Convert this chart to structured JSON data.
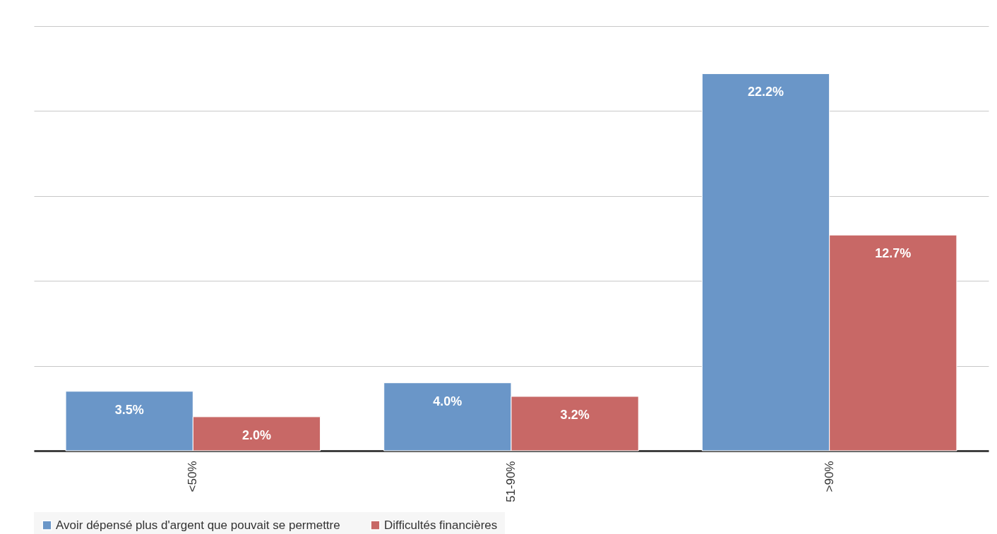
{
  "chart_data": {
    "type": "bar",
    "categories": [
      "<50%",
      "51-90%",
      ">90%"
    ],
    "series": [
      {
        "name": "Avoir dépensé plus d'argent que pouvait se permettre",
        "color": "#6a96c8",
        "values": [
          3.5,
          4.0,
          22.2
        ],
        "value_labels": [
          "3.5%",
          "4.0%",
          "22.2%"
        ]
      },
      {
        "name": "Difficultés financières",
        "color": "#c86866",
        "values": [
          2.0,
          3.2,
          12.7
        ],
        "value_labels": [
          "2.0%",
          "3.2%",
          "12.7%"
        ]
      }
    ],
    "ylim": [
      0,
      25
    ],
    "yticks": [
      {
        "value": 0,
        "label": null
      },
      {
        "value": 5,
        "label": null
      },
      {
        "value": 10,
        "label": null
      },
      {
        "value": 15,
        "label": null
      },
      {
        "value": 20,
        "label": null
      },
      {
        "value": 25,
        "label": null
      }
    ],
    "grid": "y",
    "tick_labels": "x",
    "legend": "bottom"
  }
}
